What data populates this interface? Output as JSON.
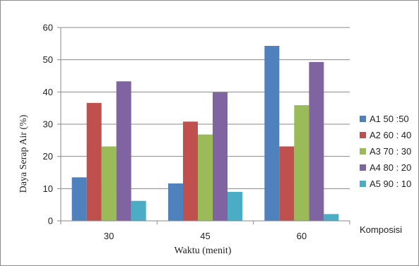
{
  "chart_data": {
    "type": "bar",
    "categories": [
      "30",
      "45",
      "60"
    ],
    "series": [
      {
        "name": "A1 50 :50",
        "color": "#4F81BD",
        "values": [
          13.5,
          11.6,
          54.3
        ]
      },
      {
        "name": "A2 60 : 40",
        "color": "#C0504D",
        "values": [
          36.6,
          30.8,
          23.1
        ]
      },
      {
        "name": "A3 70 : 30",
        "color": "#9BBB59",
        "values": [
          23.1,
          26.8,
          35.9
        ]
      },
      {
        "name": "A4 80 : 20",
        "color": "#8064A2",
        "values": [
          43.3,
          39.9,
          49.3
        ]
      },
      {
        "name": "A5 90 : 10",
        "color": "#4BACC6",
        "values": [
          6.2,
          9.0,
          2.1
        ]
      }
    ],
    "xlabel": "Waktu (menit)",
    "ylabel": "Daya Serap Air (%)",
    "ylim": [
      0,
      60
    ],
    "yticks": [
      0,
      10,
      20,
      30,
      40,
      50,
      60
    ],
    "grid": true,
    "legend_title": "Komposisi",
    "legend_position": "right"
  }
}
